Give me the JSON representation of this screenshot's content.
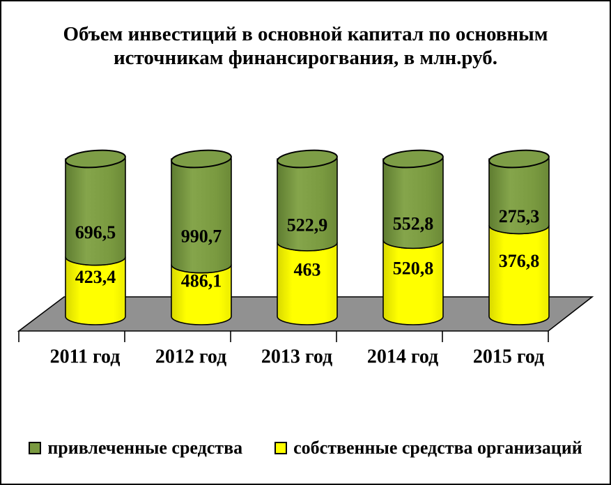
{
  "title_lines": [
    "Объем инвестиций в основной капитал по основным",
    "источникам финансирогвания, в млн.руб."
  ],
  "chart_data": {
    "type": "bar",
    "subtype": "3d-stacked-cylinder",
    "title": "Объем инвестиций в основной капитал по основным источникам финансирогвания, в млн.руб.",
    "categories": [
      "2011 год",
      "2012 год",
      "2013 год",
      "2014 год",
      "2015 год"
    ],
    "series": [
      {
        "name": "привлеченные средства",
        "position": "top-segment",
        "color": "#7A9A40",
        "values": [
          696.5,
          990.7,
          522.9,
          552.8,
          275.3
        ],
        "labels": [
          "696,5",
          "990,7",
          "522,9",
          "552,8",
          "275,3"
        ]
      },
      {
        "name": "собственные средства организаций",
        "position": "bottom-segment",
        "color": "#FFFF00",
        "values": [
          423.4,
          486.1,
          463,
          520.8,
          376.8
        ],
        "labels": [
          "423,4",
          "486,1",
          "463",
          "520,8",
          "376,8"
        ]
      }
    ],
    "value_labels_shown": true,
    "bars_drawn_full_height": true,
    "legend_position": "bottom",
    "axes": {
      "y_axis_shown": false,
      "gridlines": false,
      "x_tick_count": 6
    }
  },
  "colors": {
    "background": "#FFFFFF",
    "frame_border": "#000000",
    "floor": "#919191",
    "outline": "#000000",
    "green_body": "#7A9A40",
    "green_body_dark": "#5F7D31",
    "green_body_light": "#85A54B",
    "green_top": "#7D9D46",
    "yellow_body": "#FFFF00",
    "yellow_body_dark": "#D9D900",
    "text": "#000000"
  }
}
